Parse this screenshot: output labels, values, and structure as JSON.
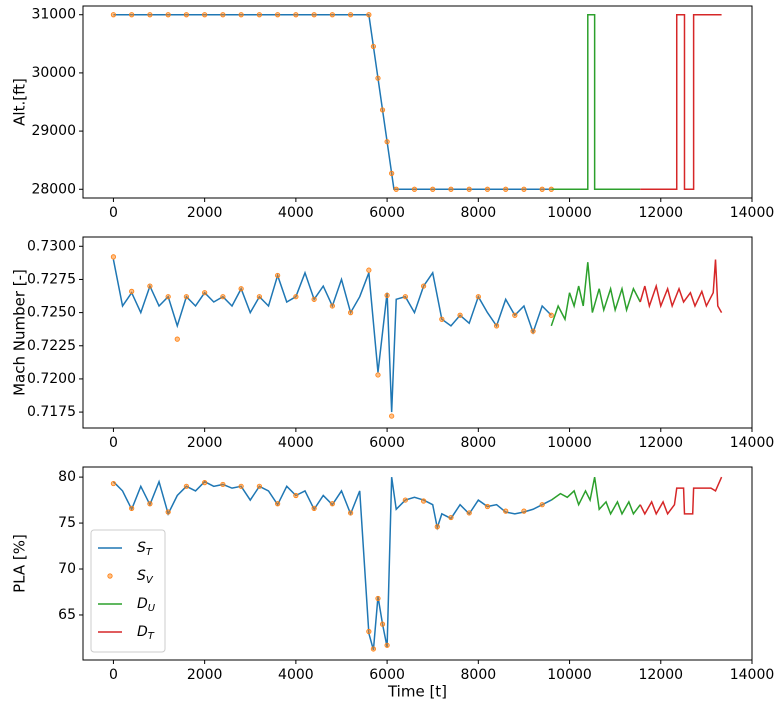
{
  "chart_data": [
    {
      "type": "line",
      "ylabel": "Alt.[ft]",
      "xlim": [
        -667,
        14000
      ],
      "xticks": [
        0,
        2000,
        4000,
        6000,
        8000,
        10000,
        12000,
        14000
      ],
      "ylim": [
        27850,
        31150
      ],
      "yticks": [
        28000,
        29000,
        30000,
        31000
      ],
      "series": [
        {
          "color": "#1f77b4",
          "style": "line",
          "x": [
            0,
            2000,
            4000,
            5600,
            5800,
            6000,
            6150,
            8000,
            9600
          ],
          "values": [
            31000,
            31000,
            31000,
            31000,
            29909,
            28818,
            28000,
            28000,
            28000
          ]
        },
        {
          "color": "#ff7f0e",
          "style": "markers",
          "x": [
            0,
            400,
            800,
            1200,
            1600,
            2000,
            2400,
            2800,
            3200,
            3600,
            4000,
            4400,
            4800,
            5200,
            5600,
            5700,
            5800,
            5900,
            6000,
            6100,
            6200,
            6600,
            7000,
            7400,
            7800,
            8200,
            8600,
            9000,
            9400,
            9600
          ],
          "values": [
            31000,
            31000,
            31000,
            31000,
            31000,
            31000,
            31000,
            31000,
            31000,
            31000,
            31000,
            31000,
            31000,
            31000,
            31000,
            30455,
            29909,
            29364,
            28818,
            28273,
            28000,
            28000,
            28000,
            28000,
            28000,
            28000,
            28000,
            28000,
            28000,
            28000
          ]
        },
        {
          "color": "#2ca02c",
          "style": "line",
          "x": [
            9600,
            10400,
            10400,
            10550,
            10550,
            11550
          ],
          "values": [
            28000,
            28000,
            31000,
            31000,
            28000,
            28000
          ]
        },
        {
          "color": "#d62728",
          "style": "line",
          "x": [
            11550,
            12350,
            12350,
            12520,
            12520,
            12720,
            12720,
            13333
          ],
          "values": [
            28000,
            28000,
            31000,
            31000,
            28000,
            28000,
            31000,
            31000
          ]
        }
      ]
    },
    {
      "type": "line",
      "ylabel": "Mach Number [-]",
      "xlim": [
        -667,
        14000
      ],
      "xticks": [
        0,
        2000,
        4000,
        6000,
        8000,
        10000,
        12000,
        14000
      ],
      "ylim": [
        0.7163,
        0.7307
      ],
      "yticks": [
        {
          "value": 0.7175,
          "label": "0.7175"
        },
        {
          "value": 0.72,
          "label": "0.7200"
        },
        {
          "value": 0.7225,
          "label": "0.7225"
        },
        {
          "value": 0.725,
          "label": "0.7250"
        },
        {
          "value": 0.7275,
          "label": "0.7275"
        },
        {
          "value": 0.73,
          "label": "0.7300"
        }
      ],
      "series": [
        {
          "color": "#1f77b4",
          "style": "line",
          "x": [
            0,
            200,
            400,
            600,
            800,
            1000,
            1200,
            1400,
            1600,
            1800,
            2000,
            2200,
            2400,
            2600,
            2800,
            3000,
            3200,
            3400,
            3600,
            3800,
            4000,
            4200,
            4400,
            4600,
            4800,
            5000,
            5200,
            5400,
            5600,
            5800,
            6000,
            6100,
            6200,
            6400,
            6600,
            6800,
            7000,
            7200,
            7400,
            7600,
            7800,
            8000,
            8200,
            8400,
            8600,
            8800,
            9000,
            9200,
            9400,
            9600
          ],
          "values": [
            0.729,
            0.7255,
            0.7265,
            0.725,
            0.727,
            0.7255,
            0.7262,
            0.724,
            0.7262,
            0.7255,
            0.7265,
            0.7258,
            0.7262,
            0.7255,
            0.7268,
            0.725,
            0.7262,
            0.7255,
            0.7278,
            0.7258,
            0.7262,
            0.728,
            0.726,
            0.727,
            0.7255,
            0.7275,
            0.725,
            0.7262,
            0.728,
            0.7205,
            0.7265,
            0.7175,
            0.726,
            0.7262,
            0.725,
            0.727,
            0.728,
            0.7245,
            0.724,
            0.7248,
            0.7242,
            0.7262,
            0.725,
            0.724,
            0.726,
            0.7248,
            0.7255,
            0.7235,
            0.7255,
            0.7248
          ]
        },
        {
          "color": "#ff7f0e",
          "style": "markers",
          "x": [
            0,
            400,
            800,
            1200,
            1400,
            1600,
            2000,
            2400,
            2800,
            3200,
            3600,
            4000,
            4400,
            4800,
            5200,
            5600,
            5800,
            6000,
            6100,
            6400,
            6800,
            7200,
            7600,
            8000,
            8400,
            8800,
            9200,
            9600
          ],
          "values": [
            0.7292,
            0.7266,
            0.727,
            0.7262,
            0.723,
            0.7262,
            0.7265,
            0.7262,
            0.7268,
            0.7262,
            0.7278,
            0.7262,
            0.726,
            0.7255,
            0.725,
            0.7282,
            0.7203,
            0.7263,
            0.7172,
            0.7262,
            0.727,
            0.7245,
            0.7248,
            0.7262,
            0.724,
            0.7248,
            0.7236,
            0.7248
          ]
        },
        {
          "color": "#2ca02c",
          "style": "line",
          "x": [
            9600,
            9750,
            9900,
            10000,
            10100,
            10200,
            10300,
            10400,
            10500,
            10650,
            10750,
            10900,
            11000,
            11150,
            11250,
            11400,
            11550
          ],
          "values": [
            0.724,
            0.7255,
            0.7245,
            0.7265,
            0.7255,
            0.727,
            0.7255,
            0.7288,
            0.725,
            0.7268,
            0.7252,
            0.7268,
            0.7252,
            0.7268,
            0.7252,
            0.7268,
            0.7258
          ]
        },
        {
          "color": "#d62728",
          "style": "line",
          "x": [
            11550,
            11650,
            11750,
            11900,
            12000,
            12150,
            12250,
            12400,
            12500,
            12650,
            12750,
            12900,
            13000,
            13150,
            13200,
            13250,
            13333
          ],
          "values": [
            0.7258,
            0.727,
            0.7255,
            0.727,
            0.7255,
            0.7268,
            0.7255,
            0.7268,
            0.7258,
            0.7265,
            0.7255,
            0.7266,
            0.7255,
            0.7265,
            0.729,
            0.7255,
            0.725
          ]
        }
      ]
    },
    {
      "type": "line",
      "ylabel": "PLA [%]",
      "xlabel": "Time [t]",
      "legend": "lower left",
      "xlim": [
        -667,
        14000
      ],
      "xticks": [
        0,
        2000,
        4000,
        6000,
        8000,
        10000,
        12000,
        14000
      ],
      "ylim": [
        60.1,
        81.1
      ],
      "yticks": [
        65,
        70,
        75,
        80
      ],
      "series": [
        {
          "name": "S_T",
          "color": "#1f77b4",
          "style": "line",
          "x": [
            0,
            200,
            400,
            600,
            800,
            1000,
            1200,
            1400,
            1600,
            1800,
            2000,
            2200,
            2400,
            2600,
            2800,
            3000,
            3200,
            3400,
            3600,
            3800,
            4000,
            4200,
            4400,
            4600,
            4800,
            5000,
            5200,
            5400,
            5600,
            5700,
            5800,
            5900,
            6000,
            6100,
            6200,
            6400,
            6600,
            6800,
            7000,
            7100,
            7200,
            7400,
            7600,
            7800,
            8000,
            8200,
            8400,
            8600,
            8800,
            9000,
            9200,
            9400,
            9600
          ],
          "values": [
            79.5,
            78.5,
            76.5,
            79,
            77,
            79.5,
            76,
            78,
            79,
            78.5,
            79.5,
            79,
            79.2,
            78.8,
            79,
            77.5,
            79,
            78.5,
            77,
            79,
            78,
            78.5,
            76.5,
            78,
            77,
            78.5,
            76,
            78.5,
            63,
            61.2,
            67,
            64,
            61.5,
            80,
            76.5,
            77.5,
            77.8,
            77.5,
            77,
            74.5,
            76,
            75.5,
            77,
            76,
            77.5,
            76.8,
            77,
            76.2,
            76,
            76.2,
            76.5,
            77,
            77.5
          ]
        },
        {
          "name": "S_V",
          "color": "#ff7f0e",
          "style": "markers",
          "x": [
            0,
            400,
            800,
            1200,
            1600,
            2000,
            2400,
            2800,
            3200,
            3600,
            4000,
            4400,
            4800,
            5200,
            5600,
            5700,
            5800,
            5900,
            6000,
            6400,
            6800,
            7100,
            7400,
            7800,
            8200,
            8600,
            9000,
            9400
          ],
          "values": [
            79.3,
            76.6,
            77.1,
            76.2,
            79,
            79.4,
            79.2,
            79,
            79,
            77.1,
            78,
            76.6,
            77.1,
            76.1,
            63.2,
            61.3,
            66.8,
            64,
            61.7,
            77.5,
            77.4,
            74.6,
            75.6,
            76.1,
            76.8,
            76.3,
            76.3,
            77
          ]
        },
        {
          "name": "D_U",
          "color": "#2ca02c",
          "style": "line",
          "x": [
            9600,
            9800,
            9950,
            10100,
            10200,
            10350,
            10450,
            10550,
            10650,
            10800,
            10900,
            11050,
            11150,
            11300,
            11400,
            11550
          ],
          "values": [
            77.5,
            78.2,
            77.8,
            78.5,
            77,
            78.5,
            77.5,
            80,
            76.5,
            77.3,
            76,
            77.3,
            76,
            77.3,
            76,
            77
          ]
        },
        {
          "name": "D_T",
          "color": "#d62728",
          "style": "line",
          "x": [
            11550,
            11650,
            11800,
            11900,
            12050,
            12150,
            12300,
            12350,
            12500,
            12520,
            12700,
            12720,
            13100,
            13200,
            13333
          ],
          "values": [
            77,
            76,
            77.3,
            76,
            77.3,
            76,
            77,
            78.8,
            78.8,
            76,
            76,
            78.8,
            78.8,
            78.5,
            80
          ]
        }
      ]
    }
  ]
}
